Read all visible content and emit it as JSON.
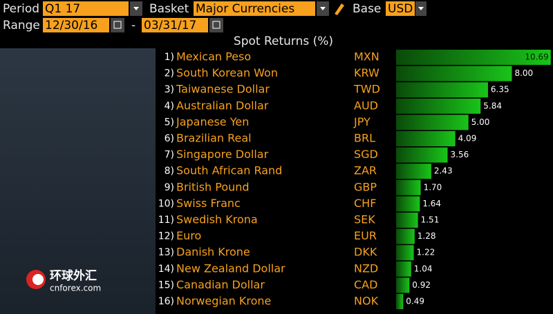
{
  "toolbar": {
    "period_label": "Period",
    "period": "Q1 17",
    "basket_label": "Basket",
    "basket": "Major Currencies",
    "base_label": "Base",
    "base": "USD",
    "range_label": "Range",
    "start": "12/30/16",
    "separator": "-",
    "end": "03/31/17"
  },
  "watermark": {
    "title": "环球外汇",
    "site": "cnforex.com"
  },
  "chart_data": {
    "type": "hbar",
    "title": "Spot Returns (%)",
    "ranks": [
      "1)",
      "2)",
      "3)",
      "4)",
      "5)",
      "6)",
      "7)",
      "8)",
      "9)",
      "10)",
      "11)",
      "12)",
      "13)",
      "14)",
      "15)",
      "16)"
    ],
    "categories": [
      "Mexican Peso",
      "South Korean Won",
      "Taiwanese Dollar",
      "Australian Dollar",
      "Japanese Yen",
      "Brazilian Real",
      "Singapore Dollar",
      "South African Rand",
      "British Pound",
      "Swiss Franc",
      "Swedish Krona",
      "Euro",
      "Danish Krone",
      "New Zealand Dollar",
      "Canadian Dollar",
      "Norwegian Krone"
    ],
    "codes": [
      "MXN",
      "KRW",
      "TWD",
      "AUD",
      "JPY",
      "BRL",
      "SGD",
      "ZAR",
      "GBP",
      "CHF",
      "SEK",
      "EUR",
      "DKK",
      "NZD",
      "CAD",
      "NOK"
    ],
    "values": [
      10.69,
      8.0,
      6.35,
      5.84,
      5.0,
      4.09,
      3.56,
      2.43,
      1.7,
      1.64,
      1.51,
      1.28,
      1.22,
      1.04,
      0.92,
      0.49
    ],
    "value_labels": [
      "10.69",
      "8.00",
      "6.35",
      "5.84",
      "5.00",
      "4.09",
      "3.56",
      "2.43",
      "1.70",
      "1.64",
      "1.51",
      "1.28",
      "1.22",
      "1.04",
      "0.92",
      "0.49"
    ],
    "xlim": [
      0,
      10.7
    ],
    "color": "#19c419"
  }
}
